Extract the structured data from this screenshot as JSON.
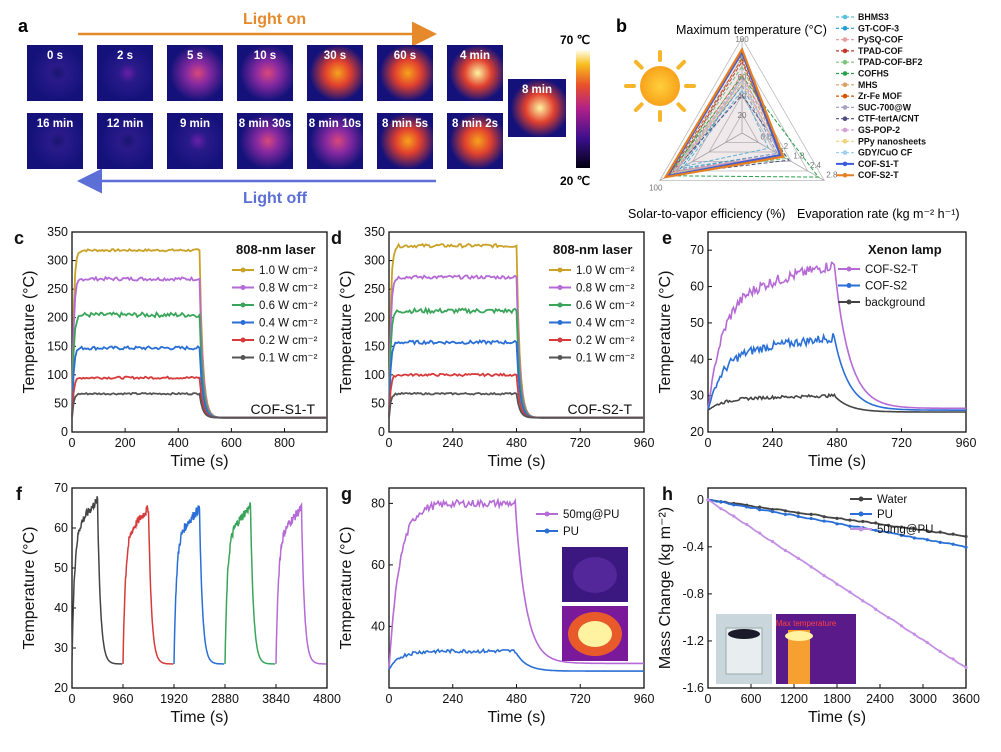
{
  "panel_a": {
    "letter": "a",
    "light_on": "Light on",
    "light_off": "Light off",
    "top_row": [
      "0 s",
      "2 s",
      "5 s",
      "10 s",
      "30 s",
      "60 s",
      "4 min"
    ],
    "bottom_row": [
      "16 min",
      "12 min",
      "9 min",
      "8 min 30s",
      "8 min 10s",
      "8 min 5s",
      "8 min 2s"
    ],
    "peak_label": "8 min",
    "top_intensity": [
      0.0,
      0.15,
      0.45,
      0.6,
      0.75,
      0.85,
      0.95
    ],
    "bottom_intensity": [
      0.02,
      0.08,
      0.18,
      0.4,
      0.55,
      0.7,
      0.85
    ],
    "peak_intensity": 1.0,
    "scale_max": "70 ℃",
    "scale_min": "20 ℃",
    "colors": {
      "on": "#e6892a",
      "off": "#5b6fd6"
    }
  },
  "panel_b": {
    "letter": "b",
    "axis_max_temp": "Maximum temperature (°C)",
    "axis_efficiency": "Solar-to-vapor efficiency (%)",
    "axis_evap": "Evaporation rate (kg m⁻² h⁻¹)",
    "tick_top": [
      "100",
      "80",
      "60",
      "40",
      "20"
    ],
    "tick_evap": [
      "0.6",
      "1.2",
      "1.8",
      "2.4",
      "2.8"
    ],
    "tick_eff": "100"
  },
  "chart_data": [
    {
      "panel": "b",
      "type": "radar",
      "axes": [
        "Maximum temperature (°C)",
        "Evaporation rate (kg m⁻² h⁻¹)",
        "Solar-to-vapor efficiency (%)"
      ],
      "axis_max": [
        100,
        2.8,
        100
      ],
      "series": [
        {
          "name": "BHMS3",
          "color": "#5bc0de",
          "values": [
            45,
            0.9,
            70
          ]
        },
        {
          "name": "GT-COF-3",
          "color": "#1f9fd0",
          "values": [
            50,
            1.2,
            75
          ]
        },
        {
          "name": "PySQ-COF",
          "color": "#e8a0a0",
          "values": [
            55,
            1.3,
            80
          ]
        },
        {
          "name": "TPAD-COF",
          "color": "#c0392b",
          "values": [
            75,
            1.4,
            85
          ]
        },
        {
          "name": "TPAD-COF-BF2",
          "color": "#7bc67b",
          "values": [
            70,
            1.5,
            86
          ]
        },
        {
          "name": "COFHS",
          "color": "#27a04a",
          "values": [
            60,
            2.6,
            90
          ]
        },
        {
          "name": "MHS",
          "color": "#d9a066",
          "values": [
            62,
            1.4,
            83
          ]
        },
        {
          "name": "Zr-Fe MOF",
          "color": "#d35400",
          "values": [
            78,
            1.3,
            88
          ]
        },
        {
          "name": "SUC-700@W",
          "color": "#a3a3c2",
          "values": [
            50,
            1.2,
            80
          ]
        },
        {
          "name": "CTF-tertA/CNT",
          "color": "#4d4d80",
          "values": [
            40,
            1.6,
            87
          ]
        },
        {
          "name": "GS-POP-2",
          "color": "#d6a0d6",
          "values": [
            58,
            1.3,
            82
          ]
        },
        {
          "name": "PPy nanosheets",
          "color": "#f2d27a",
          "values": [
            52,
            1.4,
            84
          ]
        },
        {
          "name": "GDY/CuO CF",
          "color": "#9fd0f0",
          "values": [
            55,
            1.3,
            86
          ]
        },
        {
          "name": "COF-S1-T",
          "color": "#3b5bdb",
          "values": [
            85,
            1.3,
            91
          ]
        },
        {
          "name": "COF-S2-T",
          "color": "#e67e22",
          "values": [
            88,
            1.4,
            93
          ]
        }
      ]
    },
    {
      "panel": "c",
      "type": "line",
      "xlabel": "Time (s)",
      "ylabel": "Temperature (°C)",
      "xlim": [
        0,
        960
      ],
      "ylim": [
        0,
        350
      ],
      "xticks": [
        0,
        200,
        400,
        600,
        800
      ],
      "yticks": [
        0,
        50,
        100,
        150,
        200,
        250,
        300,
        350
      ],
      "legend_title": "808-nm laser",
      "annotation": "COF-S1-T",
      "on_time": 480,
      "series": [
        {
          "name": "1.0 W cm⁻²",
          "color": "#c9a227",
          "plateau": 318,
          "noise": 2
        },
        {
          "name": "0.8 W cm⁻²",
          "color": "#b56ad6",
          "plateau": 268,
          "noise": 3
        },
        {
          "name": "0.6 W cm⁻²",
          "color": "#3aa55a",
          "plateau": 205,
          "noise": 4
        },
        {
          "name": "0.4 W cm⁻²",
          "color": "#2a6fd6",
          "plateau": 147,
          "noise": 3
        },
        {
          "name": "0.2 W cm⁻²",
          "color": "#d63a3a",
          "plateau": 95,
          "noise": 2
        },
        {
          "name": "0.1 W cm⁻²",
          "color": "#555555",
          "plateau": 67,
          "noise": 1.5
        }
      ]
    },
    {
      "panel": "d",
      "type": "line",
      "xlabel": "Time (s)",
      "ylabel": "Temperature (°C)",
      "xlim": [
        0,
        960
      ],
      "ylim": [
        0,
        350
      ],
      "xticks": [
        0,
        240,
        480,
        720,
        960
      ],
      "yticks": [
        0,
        50,
        100,
        150,
        200,
        250,
        300,
        350
      ],
      "legend_title": "808-nm laser",
      "annotation": "COF-S2-T",
      "on_time": 480,
      "series": [
        {
          "name": "1.0 W cm⁻²",
          "color": "#c9a227",
          "plateau": 326,
          "noise": 3
        },
        {
          "name": "0.8 W cm⁻²",
          "color": "#b56ad6",
          "plateau": 271,
          "noise": 3
        },
        {
          "name": "0.6 W cm⁻²",
          "color": "#3aa55a",
          "plateau": 212,
          "noise": 4
        },
        {
          "name": "0.4 W cm⁻²",
          "color": "#2a6fd6",
          "plateau": 157,
          "noise": 3
        },
        {
          "name": "0.2 W cm⁻²",
          "color": "#d63a3a",
          "plateau": 100,
          "noise": 2
        },
        {
          "name": "0.1 W cm⁻²",
          "color": "#555555",
          "plateau": 67,
          "noise": 1.5
        }
      ]
    },
    {
      "panel": "e",
      "type": "line",
      "xlabel": "Time (s)",
      "ylabel": "Temperature (°C)",
      "xlim": [
        0,
        960
      ],
      "ylim": [
        20,
        75
      ],
      "xticks": [
        0,
        240,
        480,
        720,
        960
      ],
      "yticks": [
        20,
        30,
        40,
        50,
        60,
        70
      ],
      "legend_title": "Xenon lamp",
      "series": [
        {
          "name": "COF-S2-T",
          "color": "#b56ad6",
          "start": 26,
          "peak": 66,
          "end": 26.5,
          "noise": 1.5
        },
        {
          "name": "COF-S2",
          "color": "#2a6fd6",
          "start": 26,
          "peak": 46,
          "end": 26,
          "noise": 1.2
        },
        {
          "name": "background",
          "color": "#444444",
          "start": 26,
          "peak": 30,
          "end": 25.5,
          "noise": 0.4
        }
      ]
    },
    {
      "panel": "f",
      "type": "line",
      "xlabel": "Time (s)",
      "ylabel": "Temperature (°C)",
      "xlim": [
        0,
        4800
      ],
      "ylim": [
        20,
        70
      ],
      "xticks": [
        0,
        960,
        1920,
        2880,
        3840,
        4800
      ],
      "yticks": [
        20,
        30,
        40,
        50,
        60,
        70
      ],
      "cycles": [
        {
          "color": "#444444",
          "start": 0,
          "peak": 67
        },
        {
          "color": "#d63a3a",
          "start": 960,
          "peak": 65
        },
        {
          "color": "#2a6fd6",
          "start": 1920,
          "peak": 65
        },
        {
          "color": "#3aa55a",
          "start": 2880,
          "peak": 65.5
        },
        {
          "color": "#b56ad6",
          "start": 3840,
          "peak": 65
        }
      ],
      "cycle_on": 480,
      "cycle_off": 480,
      "base": 26
    },
    {
      "panel": "g",
      "type": "line",
      "xlabel": "Time (s)",
      "ylabel": "Temperature (°C)",
      "xlim": [
        0,
        960
      ],
      "ylim": [
        20,
        85
      ],
      "xticks": [
        0,
        240,
        480,
        720,
        960
      ],
      "yticks": [
        40,
        60,
        80
      ],
      "series": [
        {
          "name": "50mg@PU",
          "color": "#b56ad6",
          "start": 26,
          "peak": 80,
          "end": 28,
          "noise": 1.2
        },
        {
          "name": "PU",
          "color": "#2a6fd6",
          "start": 26,
          "peak": 32,
          "end": 25.5,
          "noise": 0.6
        }
      ]
    },
    {
      "panel": "h",
      "type": "line",
      "xlabel": "Time (s)",
      "ylabel": "Mass Change (kg m⁻²)",
      "xlim": [
        0,
        3600
      ],
      "ylim": [
        -1.6,
        0.1
      ],
      "xticks": [
        0,
        600,
        1200,
        1800,
        2400,
        3000,
        3600
      ],
      "yticks": [
        0.0,
        -0.4,
        -0.8,
        -1.2,
        -1.6
      ],
      "series": [
        {
          "name": "Water",
          "color": "#444444",
          "slope_end": -0.31
        },
        {
          "name": "PU",
          "color": "#2a6fd6",
          "slope_end": -0.4
        },
        {
          "name": "50mg@PU",
          "color": "#c490e4",
          "slope_end": -1.43
        }
      ],
      "inset_text": "Max temperature"
    }
  ]
}
